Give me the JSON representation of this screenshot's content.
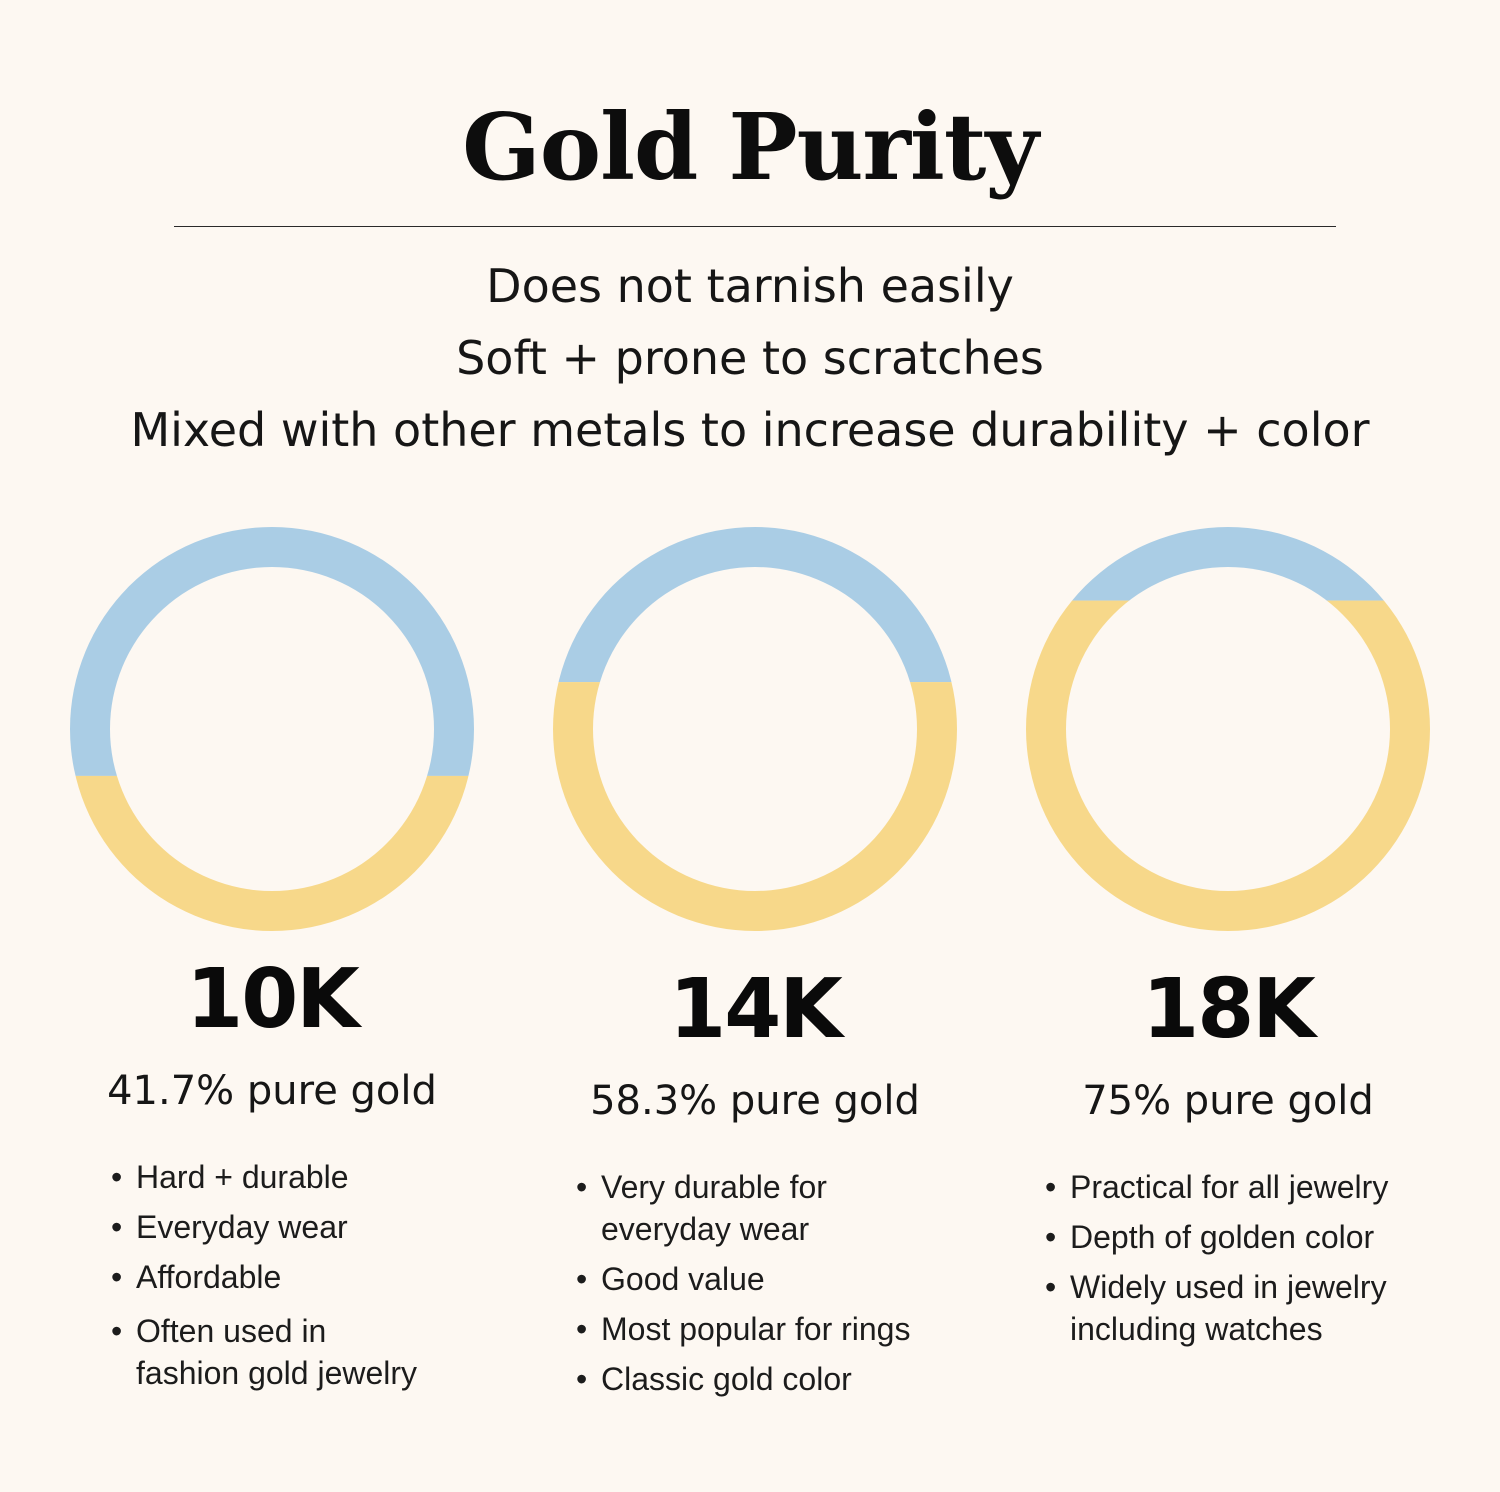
{
  "title": "Gold Purity",
  "facts": [
    "Does not tarnish easily",
    "Soft + prone to scratches",
    "Mixed with other metals to increase durability + color"
  ],
  "colors": {
    "background": "#fdf8f2",
    "gold": "#f7d88a",
    "other_metal": "#aacde5"
  },
  "bullet_glyph": "•",
  "karats": [
    {
      "label": "10K",
      "purity_text": "41.7% pure gold",
      "gold_fraction": 0.417,
      "bullets": [
        [
          "Hard + durable"
        ],
        [
          "Everyday wear"
        ],
        [
          "Affordable"
        ],
        [
          "Often used in",
          "fashion gold jewelry"
        ]
      ]
    },
    {
      "label": "14K",
      "purity_text": "58.3% pure gold",
      "gold_fraction": 0.583,
      "bullets": [
        [
          "Very durable for",
          "everyday wear"
        ],
        [
          "Good value"
        ],
        [
          "Most popular for rings"
        ],
        [
          "Classic gold color"
        ]
      ]
    },
    {
      "label": "18K",
      "purity_text": "75% pure gold",
      "gold_fraction": 0.75,
      "bullets": [
        [
          "Practical for all jewelry"
        ],
        [
          "Depth of golden color"
        ],
        [
          "Widely used in jewelry",
          "including watches"
        ]
      ]
    }
  ]
}
